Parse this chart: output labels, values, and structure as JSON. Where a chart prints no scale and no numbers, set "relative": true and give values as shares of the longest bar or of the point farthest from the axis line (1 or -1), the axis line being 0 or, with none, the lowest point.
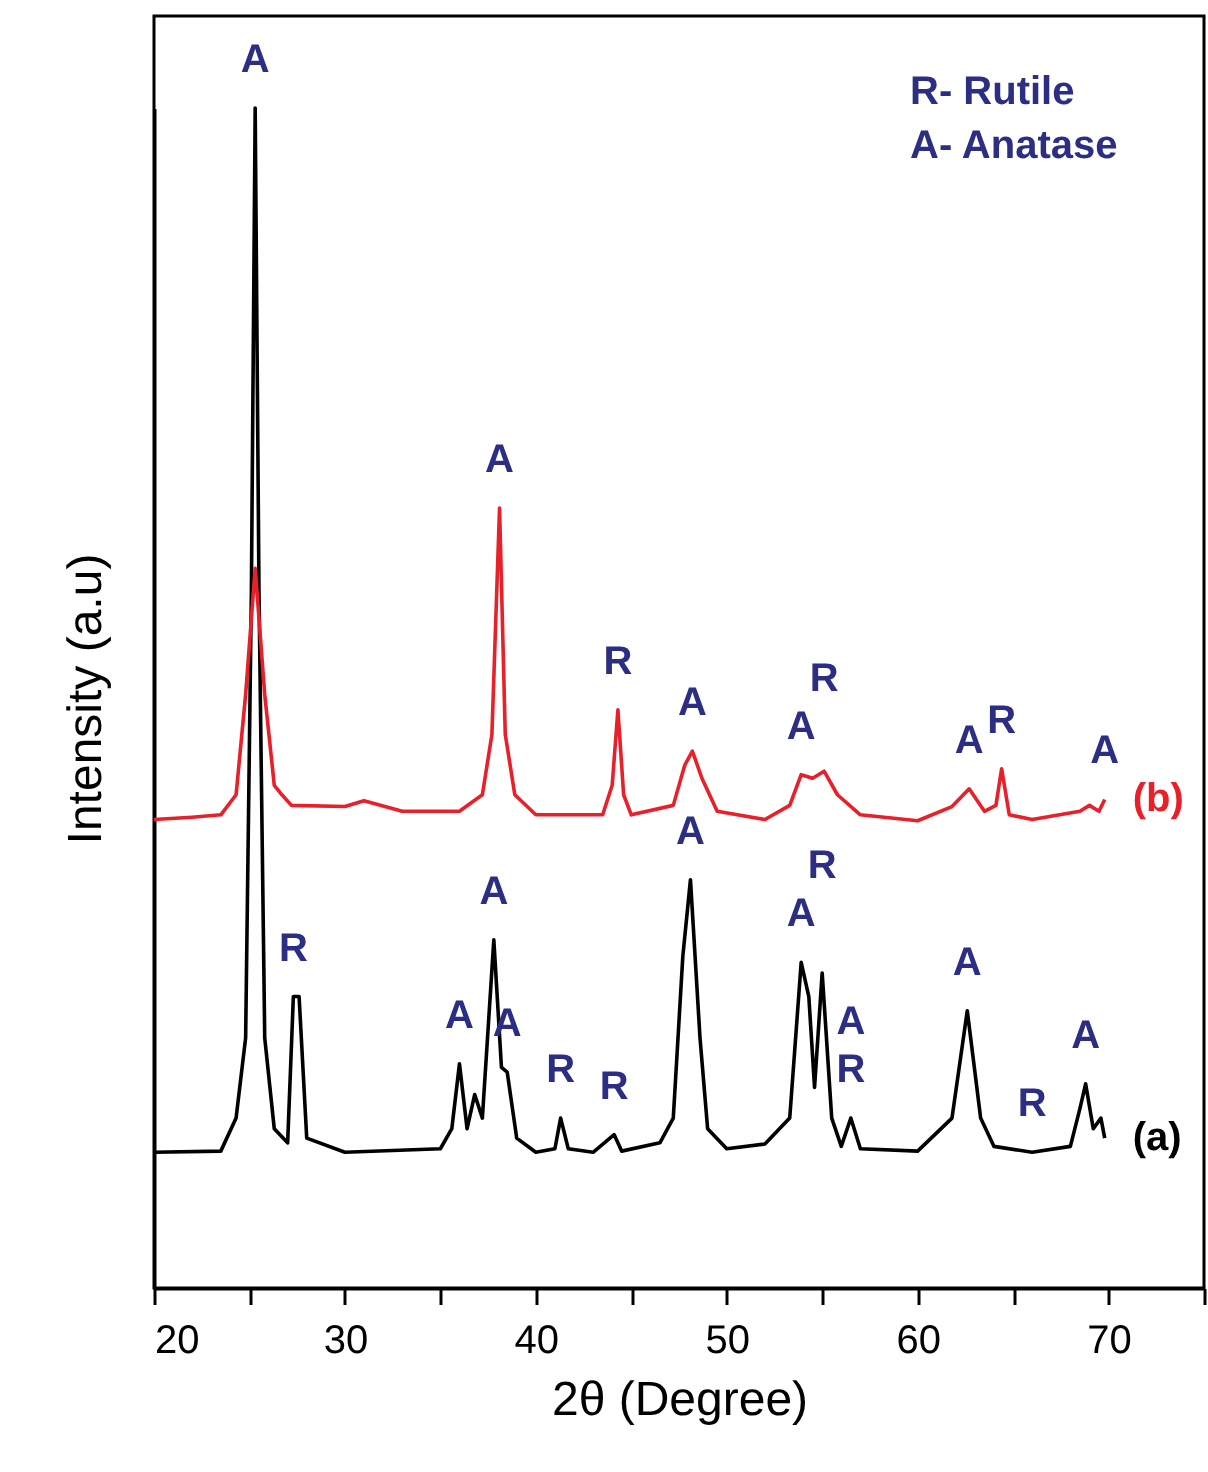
{
  "chart_data": {
    "type": "line",
    "xlabel": "2θ (Degree)",
    "ylabel": "Intensity (a.u)",
    "relative": true,
    "legend": false,
    "grid": false,
    "xlim": [
      20,
      75
    ],
    "xticks": [
      20,
      {
        "value": 25,
        "label": null
      },
      30,
      {
        "value": 35,
        "label": null
      },
      40,
      {
        "value": 45,
        "label": null
      },
      50,
      {
        "value": 55,
        "label": null
      },
      60,
      {
        "value": 65,
        "label": null
      },
      70,
      {
        "value": 75,
        "label": null
      }
    ],
    "series": [
      {
        "name": "(a)",
        "color": "#000000",
        "x": [
          20,
          23.5,
          24.3,
          24.8,
          25.1,
          25.3,
          25.5,
          25.8,
          26.3,
          27.0,
          27.3,
          27.6,
          28.0,
          30,
          35,
          35.6,
          36.0,
          36.4,
          36.8,
          37.2,
          37.8,
          38.2,
          38.5,
          39,
          40,
          41,
          41.3,
          41.7,
          43,
          44.1,
          44.5,
          46.5,
          47.2,
          47.7,
          48.1,
          48.6,
          49.0,
          50,
          52,
          53.3,
          53.9,
          54.3,
          54.6,
          55.0,
          55.5,
          56.0,
          56.5,
          57,
          60,
          61.8,
          62.6,
          63.3,
          64,
          66,
          68,
          68.5,
          68.8,
          69.2,
          69.6,
          69.8
        ],
        "values": [
          0.115,
          0.116,
          0.144,
          0.212,
          0.589,
          1.0,
          0.589,
          0.212,
          0.135,
          0.123,
          0.247,
          0.247,
          0.127,
          0.115,
          0.118,
          0.135,
          0.19,
          0.135,
          0.164,
          0.144,
          0.295,
          0.187,
          0.183,
          0.127,
          0.115,
          0.118,
          0.144,
          0.118,
          0.115,
          0.13,
          0.116,
          0.123,
          0.144,
          0.281,
          0.346,
          0.212,
          0.135,
          0.118,
          0.122,
          0.144,
          0.276,
          0.247,
          0.17,
          0.267,
          0.144,
          0.12,
          0.144,
          0.118,
          0.116,
          0.144,
          0.235,
          0.144,
          0.12,
          0.115,
          0.12,
          0.152,
          0.173,
          0.135,
          0.144,
          0.127
        ]
      },
      {
        "name": "(b)",
        "color": "#e8202a",
        "x": [
          20,
          22,
          23.5,
          24.3,
          24.8,
          25.3,
          25.8,
          26.3,
          26.7,
          27.2,
          30,
          31,
          33,
          36,
          37.2,
          37.7,
          38.1,
          38.4,
          38.9,
          40,
          43.5,
          44.0,
          44.3,
          44.6,
          45,
          47.2,
          47.8,
          48.2,
          48.7,
          49.5,
          52,
          53.3,
          53.9,
          54.5,
          55.1,
          55.8,
          57,
          60,
          61.8,
          62.7,
          63.5,
          64.1,
          64.4,
          64.8,
          66,
          68.5,
          69,
          69.5,
          69.8
        ],
        "values": [
          0.397,
          0.399,
          0.401,
          0.418,
          0.503,
          0.61,
          0.503,
          0.426,
          0.418,
          0.409,
          0.408,
          0.413,
          0.404,
          0.404,
          0.418,
          0.469,
          0.661,
          0.469,
          0.418,
          0.401,
          0.401,
          0.426,
          0.49,
          0.418,
          0.401,
          0.409,
          0.443,
          0.455,
          0.432,
          0.404,
          0.397,
          0.409,
          0.435,
          0.432,
          0.438,
          0.418,
          0.401,
          0.396,
          0.408,
          0.423,
          0.404,
          0.409,
          0.44,
          0.401,
          0.397,
          0.404,
          0.409,
          0.404,
          0.414
        ]
      }
    ],
    "annotations": [
      "R- Rutile",
      "A- Anatase",
      {
        "text": "A",
        "x": 25.3,
        "y": 1.0
      },
      {
        "text": "R",
        "x": 27.3,
        "y": 0.247
      },
      {
        "text": "A",
        "x": 36.0,
        "y": 0.19
      },
      {
        "text": "A",
        "x": 37.8,
        "y": 0.295
      },
      {
        "text": "A",
        "x": 38.5,
        "y": 0.183
      },
      {
        "text": "R",
        "x": 41.3,
        "y": 0.144
      },
      {
        "text": "R",
        "x": 44.1,
        "y": 0.13
      },
      {
        "text": "A",
        "x": 48.1,
        "y": 0.346
      },
      {
        "text": "A",
        "x": 53.9,
        "y": 0.276
      },
      {
        "text": "R",
        "x": 55.0,
        "y": 0.267
      },
      {
        "text": "R",
        "x": 56.5,
        "y": 0.144
      },
      {
        "text": "A",
        "x": 56.5,
        "y": 0.144
      },
      {
        "text": "A",
        "x": 62.6,
        "y": 0.235
      },
      {
        "text": "R",
        "x": 66,
        "y": 0.115
      },
      {
        "text": "A",
        "x": 68.8,
        "y": 0.173
      },
      {
        "text": "A",
        "x": 38.1,
        "y": 0.661
      },
      {
        "text": "R",
        "x": 44.3,
        "y": 0.49
      },
      {
        "text": "A",
        "x": 48.2,
        "y": 0.455
      },
      {
        "text": "A",
        "x": 53.9,
        "y": 0.435
      },
      {
        "text": "R",
        "x": 55.1,
        "y": 0.438
      },
      {
        "text": "A",
        "x": 62.7,
        "y": 0.423
      },
      {
        "text": "R",
        "x": 64.4,
        "y": 0.44
      },
      {
        "text": "A",
        "x": 69.8,
        "y": 0.414
      }
    ]
  }
}
